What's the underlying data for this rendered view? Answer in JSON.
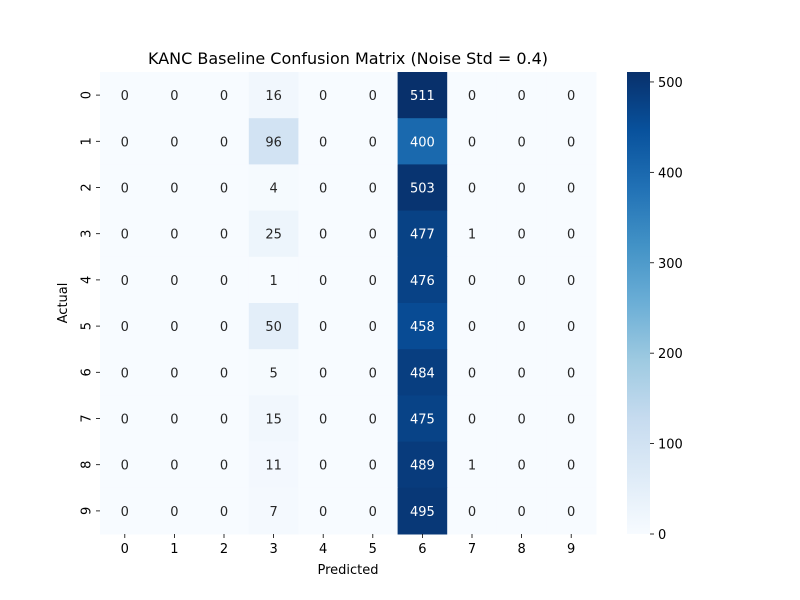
{
  "chart_data": {
    "type": "heatmap",
    "title": "KANC Baseline Confusion Matrix (Noise Std = 0.4)",
    "xlabel": "Predicted",
    "ylabel": "Actual",
    "x_categories": [
      "0",
      "1",
      "2",
      "3",
      "4",
      "5",
      "6",
      "7",
      "8",
      "9"
    ],
    "y_categories": [
      "0",
      "1",
      "2",
      "3",
      "4",
      "5",
      "6",
      "7",
      "8",
      "9"
    ],
    "values": [
      [
        0,
        0,
        0,
        16,
        0,
        0,
        511,
        0,
        0,
        0
      ],
      [
        0,
        0,
        0,
        96,
        0,
        0,
        400,
        0,
        0,
        0
      ],
      [
        0,
        0,
        0,
        4,
        0,
        0,
        503,
        0,
        0,
        0
      ],
      [
        0,
        0,
        0,
        25,
        0,
        0,
        477,
        1,
        0,
        0
      ],
      [
        0,
        0,
        0,
        1,
        0,
        0,
        476,
        0,
        0,
        0
      ],
      [
        0,
        0,
        0,
        50,
        0,
        0,
        458,
        0,
        0,
        0
      ],
      [
        0,
        0,
        0,
        5,
        0,
        0,
        484,
        0,
        0,
        0
      ],
      [
        0,
        0,
        0,
        15,
        0,
        0,
        475,
        0,
        0,
        0
      ],
      [
        0,
        0,
        0,
        11,
        0,
        0,
        489,
        1,
        0,
        0
      ],
      [
        0,
        0,
        0,
        7,
        0,
        0,
        495,
        0,
        0,
        0
      ]
    ],
    "colormap": "Blues",
    "colorbar": {
      "range": [
        0,
        511
      ],
      "tick_values": [
        0,
        100,
        200,
        300,
        400,
        500
      ],
      "tick_labels": [
        "0",
        "100",
        "200",
        "300",
        "400",
        "500"
      ]
    },
    "annotations": true,
    "grid": false
  }
}
